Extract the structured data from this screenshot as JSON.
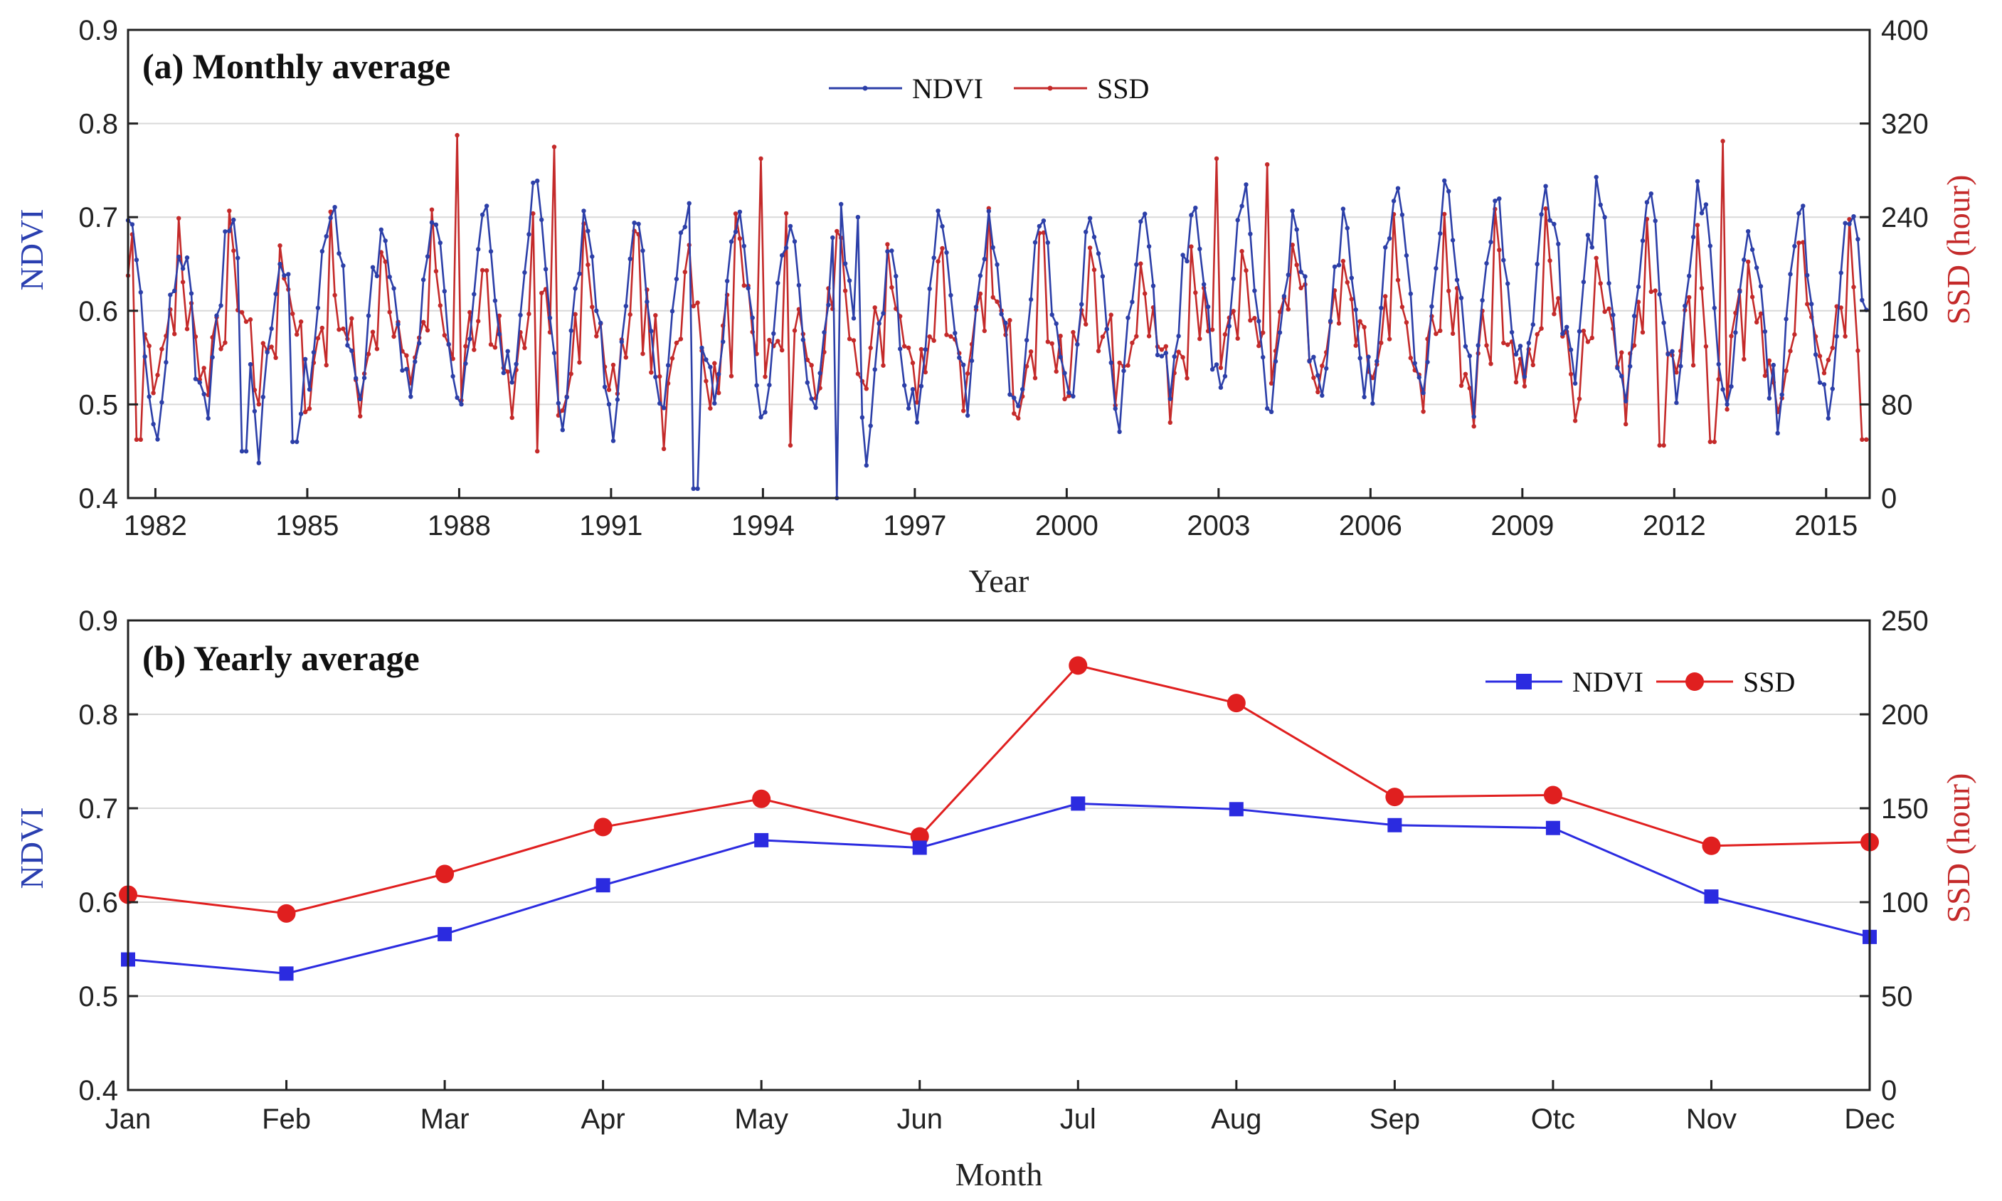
{
  "chart_data": [
    {
      "type": "line",
      "title": "(a) Monthly average",
      "xlabel": "Year",
      "ylabel_left": "NDVI",
      "ylabel_right": "SSD (hour)",
      "ylim_left": [
        0.4,
        0.9
      ],
      "ylim_right": [
        0,
        400
      ],
      "yticks_left": [
        "0.4",
        "0.5",
        "0.6",
        "0.7",
        "0.8",
        "0.9"
      ],
      "yticks_right": [
        "0",
        "80",
        "160",
        "240",
        "320",
        "400"
      ],
      "xlim": [
        1981.5,
        2015.9
      ],
      "xticks": [
        "1982",
        "1985",
        "1988",
        "1991",
        "1994",
        "1997",
        "2000",
        "2003",
        "2006",
        "2009",
        "2012",
        "2015"
      ],
      "grid": true,
      "legend": "top-center",
      "series": [
        {
          "name": "NDVI",
          "color": "#2c3fa8",
          "axis": "left",
          "monthly_pattern": [
            0.52,
            0.49,
            0.53,
            0.58,
            0.63,
            0.66,
            0.7,
            0.69,
            0.66,
            0.62,
            0.57,
            0.53
          ],
          "yearly_shift": [
            0.0,
            -0.02,
            0.0,
            -0.04,
            0.01,
            0.0,
            0.0,
            0.0,
            0.03,
            0.0,
            -0.01,
            0.0,
            0.0,
            -0.01,
            0.0,
            -0.04,
            0.0,
            0.0,
            0.0,
            0.0,
            0.0,
            0.01,
            0.02,
            0.0,
            0.0,
            0.03,
            0.02,
            0.01,
            0.03,
            0.03,
            0.02,
            0.03,
            0.0,
            0.0,
            0.01
          ],
          "dips": [
            {
              "x": 1983.8,
              "y": 0.45
            },
            {
              "x": 1984.8,
              "y": 0.46
            },
            {
              "x": 1992.7,
              "y": 0.41
            },
            {
              "x": 1995.5,
              "y": 0.4
            }
          ],
          "peaks": [
            {
              "x": 1995.9,
              "y": 0.7
            }
          ]
        },
        {
          "name": "SSD",
          "color": "#c42a2a",
          "axis": "right",
          "monthly_pattern": [
            100,
            90,
            112,
            136,
            150,
            132,
            220,
            200,
            152,
            154,
            126,
            128
          ],
          "spikes": [
            {
              "x": 1988.0,
              "y": 310
            },
            {
              "x": 1989.9,
              "y": 300
            },
            {
              "x": 1994.0,
              "y": 290
            },
            {
              "x": 2003.0,
              "y": 290
            },
            {
              "x": 2004.0,
              "y": 285
            },
            {
              "x": 2013.0,
              "y": 305
            }
          ],
          "lows": [
            {
              "x": 1981.7,
              "y": 50
            },
            {
              "x": 1989.6,
              "y": 40
            },
            {
              "x": 1992.1,
              "y": 42
            },
            {
              "x": 1994.6,
              "y": 45
            },
            {
              "x": 2011.8,
              "y": 45
            },
            {
              "x": 2012.8,
              "y": 48
            },
            {
              "x": 2015.8,
              "y": 50
            }
          ]
        }
      ]
    },
    {
      "type": "line",
      "title": "(b) Yearly average",
      "xlabel": "Month",
      "ylabel_left": "NDVI",
      "ylabel_right": "SSD (hour)",
      "ylim_left": [
        0.4,
        0.9
      ],
      "ylim_right": [
        0,
        250
      ],
      "yticks_left": [
        "0.4",
        "0.5",
        "0.6",
        "0.7",
        "0.8",
        "0.9"
      ],
      "yticks_right": [
        "0",
        "50",
        "100",
        "150",
        "200",
        "250"
      ],
      "categories": [
        "Jan",
        "Feb",
        "Mar",
        "Apr",
        "May",
        "Jun",
        "Jul",
        "Aug",
        "Sep",
        "Otc",
        "Nov",
        "Dec"
      ],
      "grid": true,
      "legend": "top-right",
      "series": [
        {
          "name": "NDVI",
          "color": "#2b2be0",
          "marker": "square",
          "axis": "left",
          "values": [
            0.539,
            0.524,
            0.566,
            0.618,
            0.666,
            0.658,
            0.705,
            0.699,
            0.682,
            0.679,
            0.606,
            0.563
          ]
        },
        {
          "name": "SSD",
          "color": "#e01f1f",
          "marker": "circle",
          "axis": "right",
          "values": [
            104,
            94,
            115,
            140,
            155,
            135,
            226,
            206,
            156,
            157,
            130,
            132
          ]
        }
      ]
    }
  ]
}
